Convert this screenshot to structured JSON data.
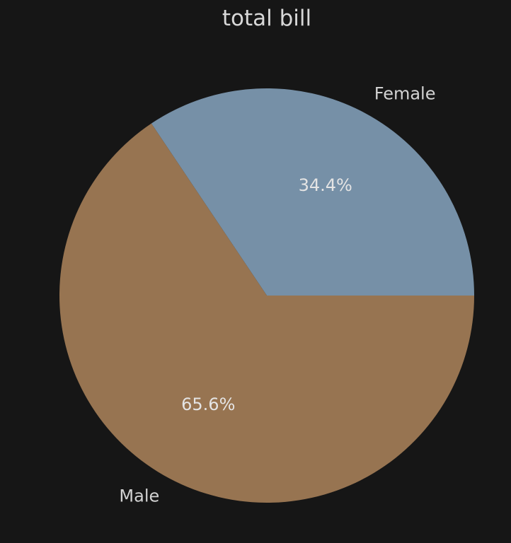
{
  "chart_data": {
    "type": "pie",
    "title": "total bill",
    "slices": [
      {
        "label": "Female",
        "value": 34.4,
        "pct_text": "34.4%",
        "color": "#7690a7"
      },
      {
        "label": "Male",
        "value": 65.6,
        "pct_text": "65.6%",
        "color": "#977451"
      }
    ],
    "start_angle_deg": 0,
    "direction": "counterclockwise"
  },
  "colors": {
    "background": "#161616",
    "text": "#d8d8d8"
  }
}
